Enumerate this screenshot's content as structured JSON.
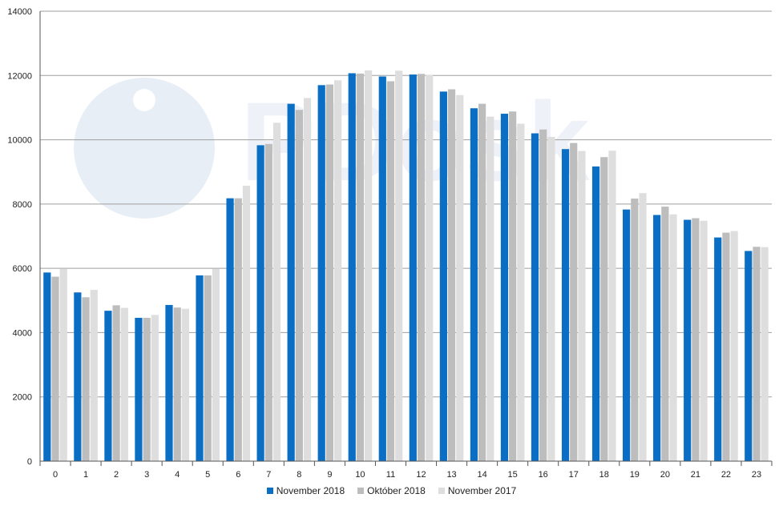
{
  "colors": {
    "november_2018": "#0a6ec4",
    "oktober_2018": "#bdbdbd",
    "november_2017": "#dedede",
    "gridline": "#9e9e9e",
    "watermark": "#e8eef6"
  },
  "chart_data": {
    "type": "bar",
    "title": "",
    "xlabel": "",
    "ylabel": "",
    "ylim": [
      0,
      14000
    ],
    "yticks": [
      0,
      2000,
      4000,
      6000,
      8000,
      10000,
      12000,
      14000
    ],
    "grid": true,
    "legend_position": "bottom",
    "categories": [
      "0",
      "1",
      "2",
      "3",
      "4",
      "5",
      "6",
      "7",
      "8",
      "9",
      "10",
      "11",
      "12",
      "13",
      "14",
      "15",
      "16",
      "17",
      "18",
      "19",
      "20",
      "21",
      "22",
      "23"
    ],
    "series": [
      {
        "name": "November 2018",
        "color_key": "november_2018",
        "values": [
          5870,
          5250,
          4680,
          4460,
          4860,
          5780,
          8180,
          9830,
          11120,
          11700,
          12070,
          11970,
          12030,
          11500,
          10980,
          10810,
          10200,
          9710,
          9170,
          7830,
          7660,
          7510,
          6960,
          6540
        ]
      },
      {
        "name": "Október 2018",
        "color_key": "oktober_2018",
        "values": [
          5740,
          5100,
          4850,
          4460,
          4780,
          5780,
          8180,
          9870,
          10930,
          11720,
          12060,
          11820,
          12050,
          11570,
          11120,
          10880,
          10320,
          9900,
          9460,
          8170,
          7920,
          7560,
          7110,
          6670
        ]
      },
      {
        "name": "November 2017",
        "color_key": "november_2017",
        "values": [
          5980,
          5330,
          4770,
          4550,
          4740,
          5990,
          8570,
          10530,
          11300,
          11850,
          12160,
          12150,
          12010,
          11390,
          10720,
          10500,
          10090,
          9650,
          9660,
          8340,
          7680,
          7480,
          7160,
          6660
        ]
      }
    ]
  }
}
